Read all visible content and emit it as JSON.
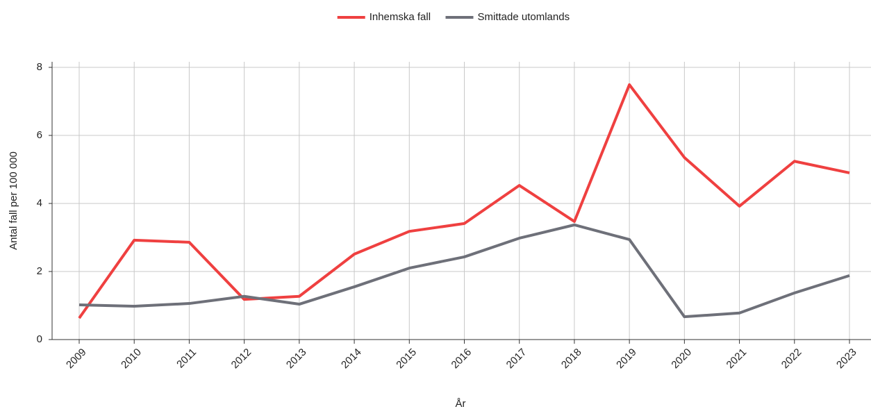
{
  "chart_data": {
    "type": "line",
    "categories": [
      "2009",
      "2010",
      "2011",
      "2012",
      "2013",
      "2014",
      "2015",
      "2016",
      "2017",
      "2018",
      "2019",
      "2020",
      "2021",
      "2022",
      "2023"
    ],
    "series": [
      {
        "name": "Inhemska fall",
        "color": "#ef4040",
        "values": [
          0.63,
          2.92,
          2.86,
          1.18,
          1.27,
          2.51,
          3.18,
          3.41,
          4.53,
          3.47,
          7.49,
          5.35,
          3.92,
          5.24,
          4.9
        ]
      },
      {
        "name": "Smittade utomlands",
        "color": "#6e7079",
        "values": [
          1.02,
          0.98,
          1.06,
          1.27,
          1.04,
          1.55,
          2.1,
          2.43,
          2.98,
          3.37,
          2.94,
          0.67,
          0.78,
          1.37,
          1.88
        ]
      }
    ],
    "xlabel": "År",
    "ylabel": "Antal fall per 100 000",
    "ylim": [
      0,
      8
    ],
    "yticks": [
      0,
      2,
      4,
      6,
      8
    ],
    "grid": true,
    "legend": "top"
  }
}
